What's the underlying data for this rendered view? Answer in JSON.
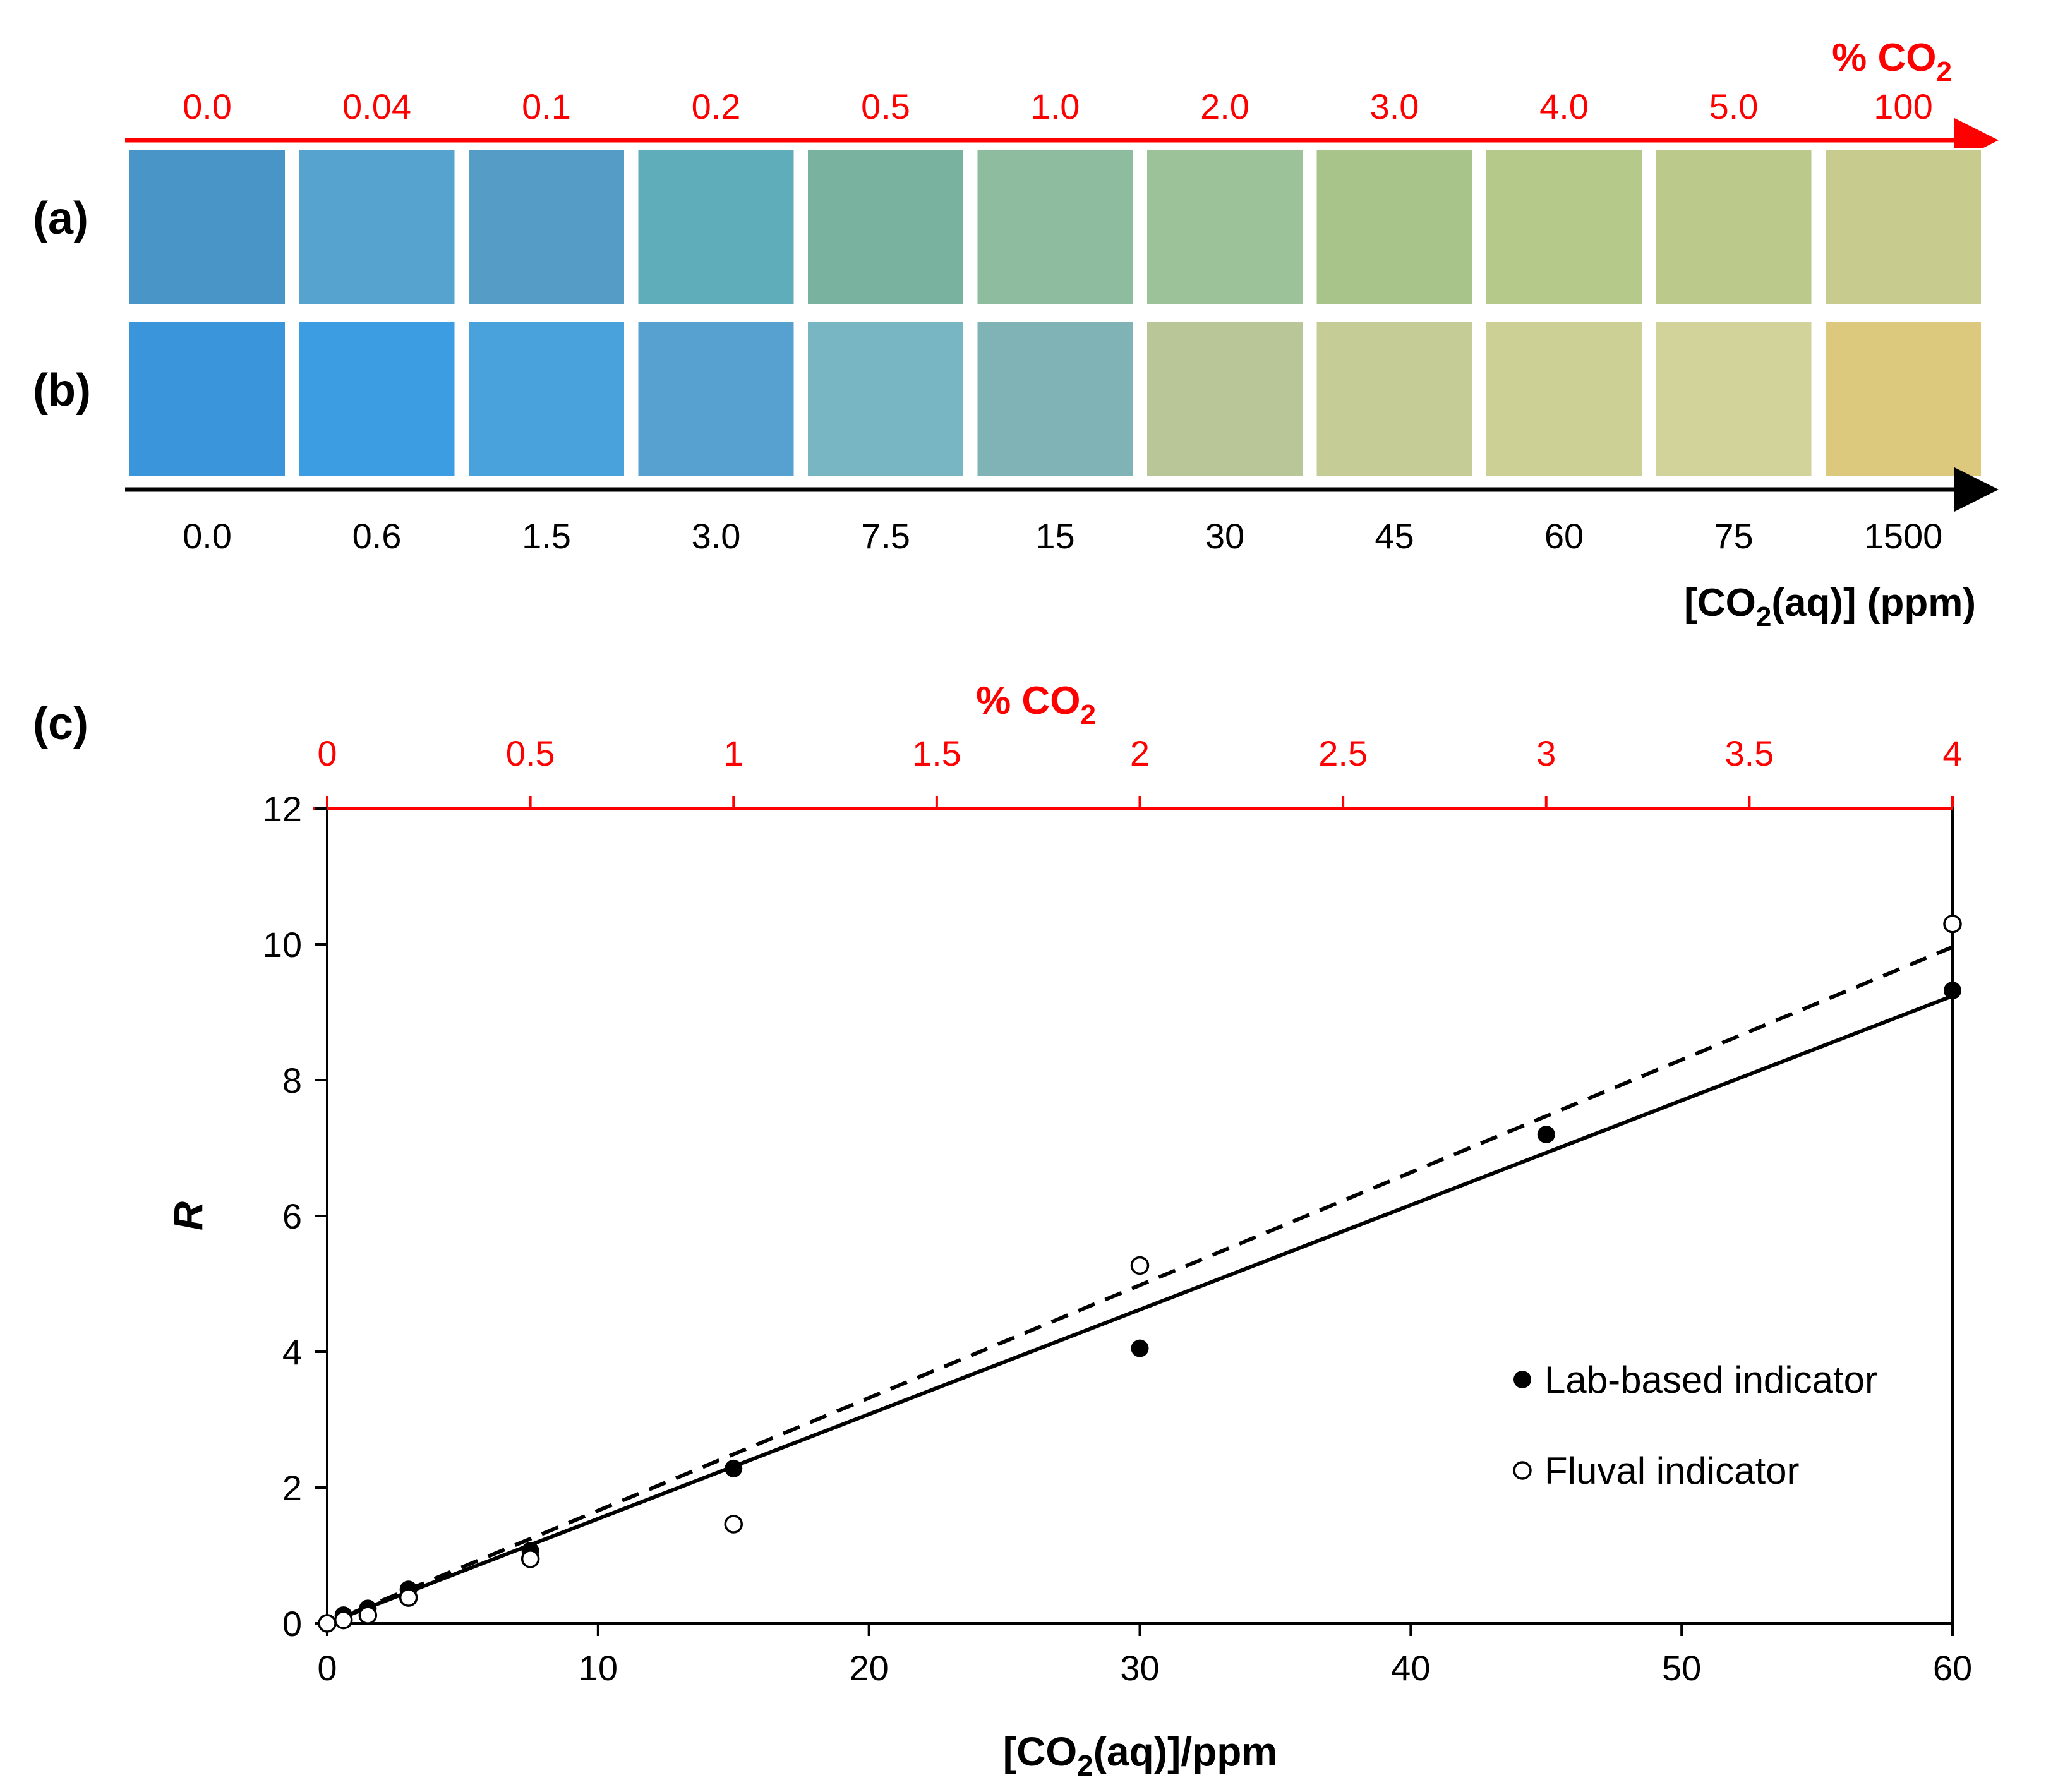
{
  "strips": {
    "top_axis_title": "% CO",
    "top_axis_title_sub": "2",
    "top_ticks": [
      "0.0",
      "0.04",
      "0.1",
      "0.2",
      "0.5",
      "1.0",
      "2.0",
      "3.0",
      "4.0",
      "5.0",
      "100"
    ],
    "bottom_ticks": [
      "0.0",
      "0.6",
      "1.5",
      "3.0",
      "7.5",
      "15",
      "30",
      "45",
      "60",
      "75",
      "1500"
    ],
    "bottom_axis_title_a": "[CO",
    "bottom_axis_title_sub": "2",
    "bottom_axis_title_b": "(aq)] (ppm)",
    "row_labels": [
      "(a)",
      "(b)"
    ],
    "row_a_colors": [
      "#4a95c8",
      "#56a3d0",
      "#559dc6",
      "#5fadbb",
      "#79b29e",
      "#8dbd9e",
      "#9cc29a",
      "#a8c48a",
      "#b5c98a",
      "#bbc98b",
      "#c7cb8d"
    ],
    "row_b_colors": [
      "#3a95db",
      "#3d9de2",
      "#4aa2dc",
      "#56a1cf",
      "#79b6c4",
      "#7fb3b6",
      "#b9c698",
      "#c6cc96",
      "#cdd094",
      "#d1d39a",
      "#dcc97e"
    ],
    "axis_color": "#ff0000"
  },
  "panel_c_label": "(c)",
  "chart_data": {
    "type": "scatter",
    "xlabel_a": "[CO",
    "xlabel_sub": "2",
    "xlabel_b": "(aq)]/ppm",
    "ylabel": "R",
    "top_axis_title": "% CO",
    "top_axis_title_sub": "2",
    "xlim": [
      0,
      60
    ],
    "ylim": [
      0,
      12
    ],
    "top_xlim": [
      0,
      4
    ],
    "x_ticks": [
      0,
      10,
      20,
      30,
      40,
      50,
      60
    ],
    "y_ticks": [
      0,
      2,
      4,
      6,
      8,
      10,
      12
    ],
    "top_ticks": [
      "0",
      "0.5",
      "1",
      "1.5",
      "2",
      "2.5",
      "3",
      "3.5",
      "4"
    ],
    "top_tick_values": [
      0,
      0.5,
      1,
      1.5,
      2,
      2.5,
      3,
      3.5,
      4
    ],
    "grid": false,
    "legend_position": "right-middle",
    "series": [
      {
        "name": "Lab-based indicator",
        "marker": "filled-circle",
        "x": [
          0,
          0.6,
          1.5,
          3.0,
          7.5,
          15,
          30,
          45,
          60
        ],
        "y": [
          0,
          0.12,
          0.22,
          0.5,
          1.07,
          2.28,
          4.05,
          7.2,
          9.32
        ],
        "fit": {
          "style": "solid",
          "slope": 0.154,
          "intercept": 0
        }
      },
      {
        "name": "Fluval indicator",
        "marker": "open-circle",
        "x": [
          0,
          0.6,
          1.5,
          3.0,
          7.5,
          15,
          30,
          60
        ],
        "y": [
          0,
          0.05,
          0.12,
          0.38,
          0.95,
          1.46,
          5.27,
          10.3
        ],
        "fit": {
          "style": "dashed",
          "slope": 0.166,
          "intercept": 0
        }
      }
    ]
  }
}
